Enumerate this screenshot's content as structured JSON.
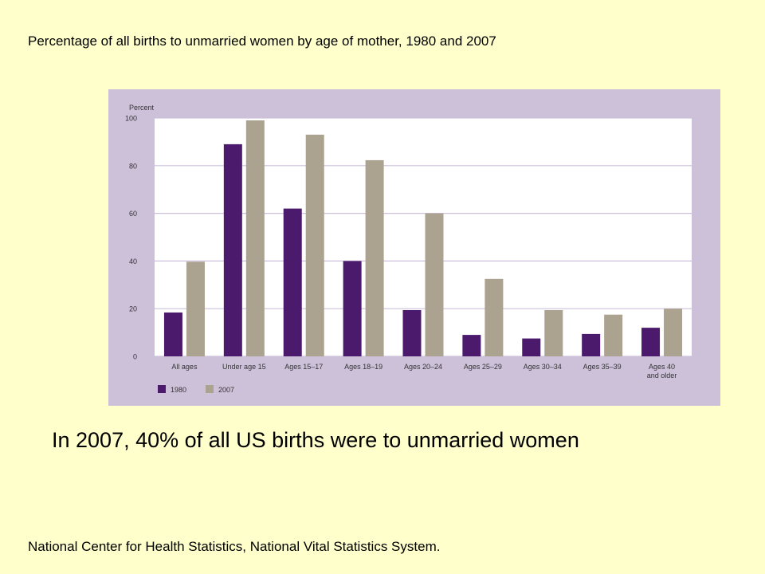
{
  "slide": {
    "title": "Percentage of all births to unmarried women by age of mother, 1980 and 2007",
    "caption": "In 2007, 40% of all US births were to unmarried women",
    "source": "National Center for Health Statistics, National Vital Statistics System."
  },
  "colors": {
    "background": "#FFFFCC",
    "panel": "#CDC1DA",
    "plot_area": "#FFFFFF",
    "series_1980": "#4B1A6C",
    "series_2007": "#ABA290"
  },
  "chart_data": {
    "type": "bar",
    "ylabel": "Percent",
    "ylim": [
      0,
      100
    ],
    "yticks": [
      0,
      20,
      40,
      60,
      80,
      100
    ],
    "grid": true,
    "legend_position": "bottom-left",
    "categories": [
      [
        "All ages"
      ],
      [
        "Under age 15"
      ],
      [
        "Ages 15–17"
      ],
      [
        "Ages 18–19"
      ],
      [
        "Ages 20–24"
      ],
      [
        "Ages 25–29"
      ],
      [
        "Ages 30–34"
      ],
      [
        "Ages 35–39"
      ],
      [
        "Ages 40",
        "and older"
      ]
    ],
    "series": [
      {
        "name": "1980",
        "color": "#4B1A6C",
        "values": [
          18.4,
          89,
          62,
          40,
          19.4,
          9,
          7.5,
          9.4,
          12
        ]
      },
      {
        "name": "2007",
        "color": "#ABA290",
        "values": [
          39.7,
          99,
          93,
          82.3,
          60,
          32.5,
          19.4,
          17.5,
          20
        ]
      }
    ]
  }
}
